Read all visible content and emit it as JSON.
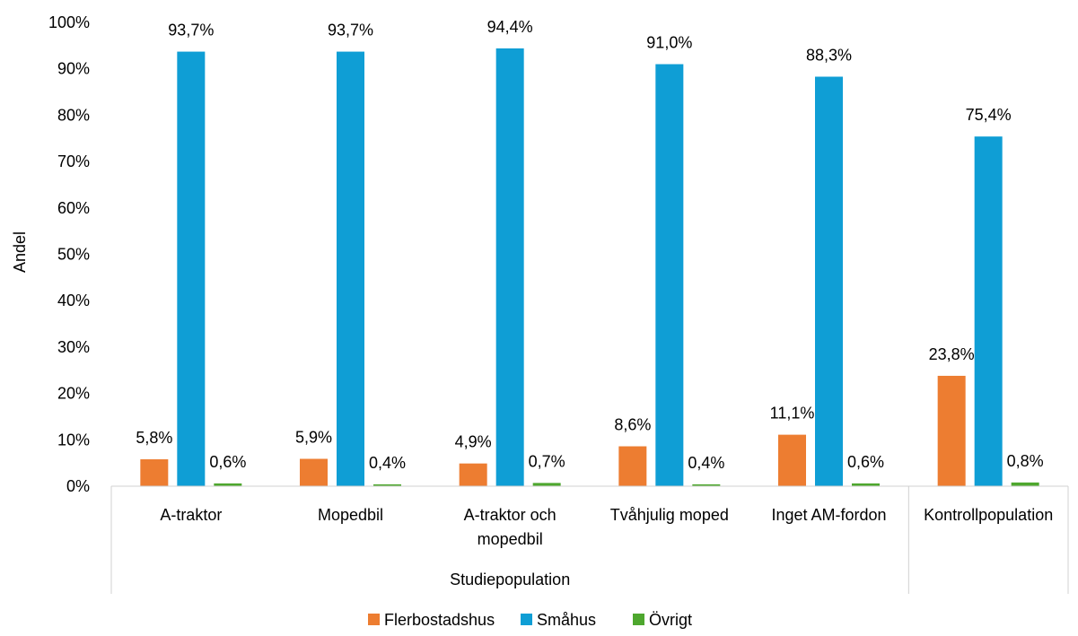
{
  "chart_data": {
    "type": "bar",
    "ylabel": "Andel",
    "ylim": [
      0,
      100
    ],
    "yticks": [
      "0%",
      "10%",
      "20%",
      "30%",
      "40%",
      "50%",
      "60%",
      "70%",
      "80%",
      "90%",
      "100%"
    ],
    "groups": [
      {
        "label": "Studiepopulation",
        "categories": [
          0,
          1,
          2,
          3,
          4
        ]
      },
      {
        "label": "",
        "categories": [
          5
        ]
      }
    ],
    "categories": [
      [
        "A-traktor"
      ],
      [
        "Mopedbil"
      ],
      [
        "A-traktor och",
        "mopedbil"
      ],
      [
        "Tvåhjulig moped"
      ],
      [
        "Inget AM-fordon"
      ],
      [
        "Kontrollpopulation"
      ]
    ],
    "series": [
      {
        "name": "Flerbostadshus",
        "color": "#ED7D31",
        "values": [
          5.8,
          5.9,
          4.9,
          8.6,
          11.1,
          23.8
        ],
        "labels": [
          "5,8%",
          "5,9%",
          "4,9%",
          "8,6%",
          "11,1%",
          "23,8%"
        ]
      },
      {
        "name": "Småhus",
        "color": "#0F9ED5",
        "values": [
          93.7,
          93.7,
          94.4,
          91.0,
          88.3,
          75.4
        ],
        "labels": [
          "93,7%",
          "93,7%",
          "94,4%",
          "91,0%",
          "88,3%",
          "75,4%"
        ]
      },
      {
        "name": "Övrigt",
        "color": "#4EA72E",
        "values": [
          0.6,
          0.4,
          0.7,
          0.4,
          0.6,
          0.8
        ],
        "labels": [
          "0,6%",
          "0,4%",
          "0,7%",
          "0,4%",
          "0,6%",
          "0,8%"
        ]
      }
    ],
    "legend_position": "bottom",
    "grid": false
  }
}
